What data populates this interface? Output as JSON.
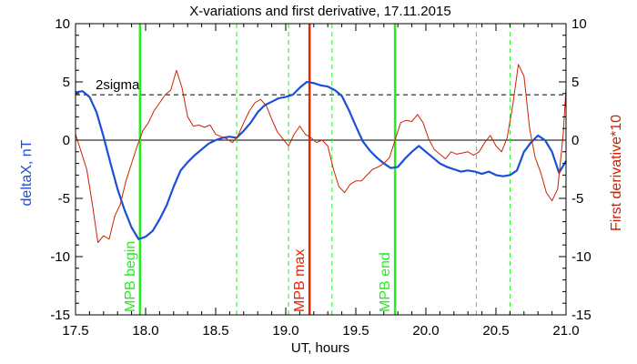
{
  "chart_data": {
    "type": "line",
    "title": "X-variations and first derivative, 17.11.2015",
    "xlabel": "UT, hours",
    "ylabel_left": "deltaX, nT",
    "ylabel_right": "First derivative*10",
    "xlim": [
      17.5,
      21.0
    ],
    "ylim": [
      -15,
      10
    ],
    "x_ticks": [
      "17.5",
      "18.0",
      "18.5",
      "19.0",
      "19.5",
      "20.0",
      "20.5",
      "21.0"
    ],
    "x_tick_values": [
      17.5,
      18.0,
      18.5,
      19.0,
      19.5,
      20.0,
      20.5,
      21.0
    ],
    "y_ticks": [
      "-15",
      "-10",
      "-5",
      "0",
      "5",
      "10"
    ],
    "y_tick_values": [
      -15,
      -10,
      -5,
      0,
      5,
      10
    ],
    "threshold": {
      "label": "2sigma",
      "value": 3.9
    },
    "series": [
      {
        "axis": "left",
        "color": "#1a4fd6",
        "points": [
          [
            17.5,
            4.1
          ],
          [
            17.55,
            4.2
          ],
          [
            17.6,
            3.7
          ],
          [
            17.65,
            2.4
          ],
          [
            17.7,
            0.3
          ],
          [
            17.75,
            -2.0
          ],
          [
            17.8,
            -4.2
          ],
          [
            17.85,
            -6.0
          ],
          [
            17.9,
            -7.5
          ],
          [
            17.95,
            -8.5
          ],
          [
            18.0,
            -8.3
          ],
          [
            18.05,
            -7.8
          ],
          [
            18.1,
            -6.8
          ],
          [
            18.15,
            -5.6
          ],
          [
            18.2,
            -4.0
          ],
          [
            18.25,
            -2.6
          ],
          [
            18.3,
            -1.9
          ],
          [
            18.35,
            -1.3
          ],
          [
            18.4,
            -0.8
          ],
          [
            18.45,
            -0.3
          ],
          [
            18.5,
            0.0
          ],
          [
            18.55,
            0.2
          ],
          [
            18.6,
            0.3
          ],
          [
            18.65,
            0.2
          ],
          [
            18.7,
            0.8
          ],
          [
            18.75,
            1.5
          ],
          [
            18.8,
            2.4
          ],
          [
            18.85,
            3.0
          ],
          [
            18.9,
            3.3
          ],
          [
            18.95,
            3.6
          ],
          [
            19.0,
            3.7
          ],
          [
            19.05,
            3.9
          ],
          [
            19.1,
            4.5
          ],
          [
            19.15,
            5.0
          ],
          [
            19.2,
            4.9
          ],
          [
            19.25,
            4.7
          ],
          [
            19.3,
            4.6
          ],
          [
            19.35,
            4.3
          ],
          [
            19.4,
            3.8
          ],
          [
            19.45,
            2.6
          ],
          [
            19.5,
            1.2
          ],
          [
            19.55,
            -0.1
          ],
          [
            19.6,
            -0.9
          ],
          [
            19.65,
            -1.5
          ],
          [
            19.7,
            -2.0
          ],
          [
            19.75,
            -2.4
          ],
          [
            19.8,
            -2.3
          ],
          [
            19.85,
            -1.6
          ],
          [
            19.9,
            -1.0
          ],
          [
            19.95,
            -0.5
          ],
          [
            20.0,
            -1.0
          ],
          [
            20.05,
            -1.5
          ],
          [
            20.1,
            -2.0
          ],
          [
            20.15,
            -2.3
          ],
          [
            20.2,
            -2.5
          ],
          [
            20.25,
            -2.7
          ],
          [
            20.3,
            -2.6
          ],
          [
            20.35,
            -2.7
          ],
          [
            20.4,
            -2.9
          ],
          [
            20.45,
            -2.7
          ],
          [
            20.5,
            -3.0
          ],
          [
            20.55,
            -3.1
          ],
          [
            20.6,
            -3.0
          ],
          [
            20.65,
            -2.6
          ],
          [
            20.7,
            -1.0
          ],
          [
            20.75,
            -0.2
          ],
          [
            20.8,
            0.4
          ],
          [
            20.85,
            0.0
          ],
          [
            20.9,
            -1.0
          ],
          [
            20.95,
            -2.8
          ],
          [
            21.0,
            -1.8
          ]
        ]
      },
      {
        "axis": "right",
        "color": "#cc2200",
        "points": [
          [
            17.5,
            0.5
          ],
          [
            17.54,
            -1.0
          ],
          [
            17.58,
            -2.5
          ],
          [
            17.62,
            -5.5
          ],
          [
            17.66,
            -8.8
          ],
          [
            17.7,
            -8.2
          ],
          [
            17.74,
            -8.5
          ],
          [
            17.78,
            -6.5
          ],
          [
            17.82,
            -5.5
          ],
          [
            17.86,
            -3.5
          ],
          [
            17.9,
            -2.0
          ],
          [
            17.94,
            -0.5
          ],
          [
            17.98,
            0.8
          ],
          [
            18.02,
            1.5
          ],
          [
            18.06,
            2.5
          ],
          [
            18.1,
            3.2
          ],
          [
            18.14,
            3.9
          ],
          [
            18.18,
            4.3
          ],
          [
            18.22,
            6.0
          ],
          [
            18.26,
            4.5
          ],
          [
            18.3,
            2.0
          ],
          [
            18.34,
            1.2
          ],
          [
            18.38,
            1.3
          ],
          [
            18.42,
            1.1
          ],
          [
            18.46,
            1.3
          ],
          [
            18.5,
            0.5
          ],
          [
            18.54,
            0.3
          ],
          [
            18.58,
            0.1
          ],
          [
            18.62,
            -0.2
          ],
          [
            18.66,
            0.4
          ],
          [
            18.7,
            1.5
          ],
          [
            18.74,
            2.5
          ],
          [
            18.78,
            3.2
          ],
          [
            18.82,
            3.5
          ],
          [
            18.86,
            3.0
          ],
          [
            18.9,
            1.8
          ],
          [
            18.94,
            0.7
          ],
          [
            18.98,
            0.1
          ],
          [
            19.02,
            -0.5
          ],
          [
            19.06,
            0.5
          ],
          [
            19.1,
            1.2
          ],
          [
            19.14,
            0.5
          ],
          [
            19.18,
            0.2
          ],
          [
            19.22,
            -0.2
          ],
          [
            19.26,
            0.0
          ],
          [
            19.3,
            -0.5
          ],
          [
            19.34,
            -2.5
          ],
          [
            19.38,
            -4.0
          ],
          [
            19.42,
            -4.5
          ],
          [
            19.46,
            -3.8
          ],
          [
            19.5,
            -3.5
          ],
          [
            19.54,
            -3.5
          ],
          [
            19.58,
            -3.0
          ],
          [
            19.62,
            -2.5
          ],
          [
            19.66,
            -2.3
          ],
          [
            19.7,
            -2.0
          ],
          [
            19.74,
            -1.5
          ],
          [
            19.78,
            0.0
          ],
          [
            19.82,
            1.5
          ],
          [
            19.86,
            1.7
          ],
          [
            19.9,
            1.6
          ],
          [
            19.94,
            2.2
          ],
          [
            19.98,
            1.5
          ],
          [
            20.02,
            0.1
          ],
          [
            20.06,
            -0.8
          ],
          [
            20.1,
            -1.2
          ],
          [
            20.14,
            -1.6
          ],
          [
            20.18,
            -1.0
          ],
          [
            20.22,
            -1.2
          ],
          [
            20.26,
            -1.1
          ],
          [
            20.3,
            -1.0
          ],
          [
            20.34,
            -1.3
          ],
          [
            20.38,
            -1.0
          ],
          [
            20.42,
            -0.2
          ],
          [
            20.46,
            0.4
          ],
          [
            20.5,
            -0.5
          ],
          [
            20.54,
            -1.0
          ],
          [
            20.58,
            0.2
          ],
          [
            20.62,
            3.0
          ],
          [
            20.66,
            6.5
          ],
          [
            20.7,
            5.5
          ],
          [
            20.74,
            1.0
          ],
          [
            20.78,
            -1.5
          ],
          [
            20.82,
            -2.8
          ],
          [
            20.86,
            -4.5
          ],
          [
            20.9,
            -5.2
          ],
          [
            20.94,
            -4.2
          ],
          [
            20.98,
            0.5
          ],
          [
            21.0,
            4.5
          ]
        ]
      }
    ],
    "vertical_markers": [
      {
        "x": 17.96,
        "style": "solid",
        "color": "#22ee22",
        "label": "MPB begin"
      },
      {
        "x": 19.17,
        "style": "solid",
        "color": "#ee2200",
        "label": "MPB max"
      },
      {
        "x": 19.78,
        "style": "solid",
        "color": "#22ee22",
        "label": "MPB end"
      },
      {
        "x": 18.65,
        "style": "dashed",
        "color": "#22ee22",
        "label": ""
      },
      {
        "x": 19.02,
        "style": "dashed",
        "color": "#22ee22",
        "label": ""
      },
      {
        "x": 19.33,
        "style": "dashed",
        "color": "#22ee22",
        "label": ""
      },
      {
        "x": 20.36,
        "style": "dashed",
        "color": "#22ee22",
        "label": ""
      },
      {
        "x": 20.6,
        "style": "dashed",
        "color": "#22ee22",
        "label": ""
      }
    ]
  }
}
